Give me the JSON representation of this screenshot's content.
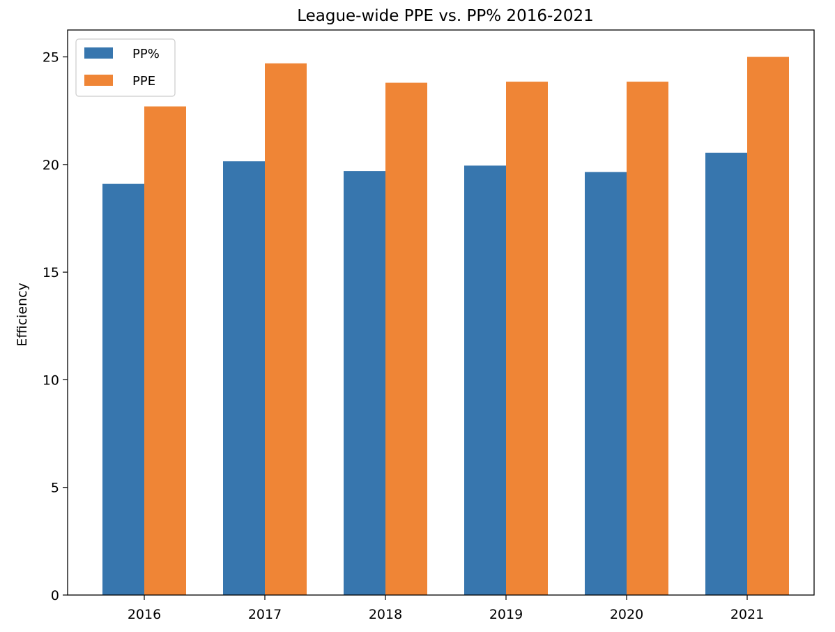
{
  "chart_data": {
    "type": "bar",
    "title": "League-wide PPE vs. PP% 2016-2021",
    "xlabel": "",
    "ylabel": "Efficiency",
    "categories": [
      "2016",
      "2017",
      "2018",
      "2019",
      "2020",
      "2021"
    ],
    "series": [
      {
        "name": "PP%",
        "color": "#3776ae",
        "values": [
          19.1,
          20.15,
          19.7,
          19.95,
          19.65,
          20.55
        ]
      },
      {
        "name": "PPE",
        "color": "#ef8536",
        "values": [
          22.7,
          24.7,
          23.8,
          23.85,
          23.85,
          25.0
        ]
      }
    ],
    "ylim": [
      0,
      26.25
    ],
    "yticks": [
      "0",
      "5",
      "10",
      "15",
      "20",
      "25"
    ],
    "legend_position": "top-left",
    "grid": false
  }
}
